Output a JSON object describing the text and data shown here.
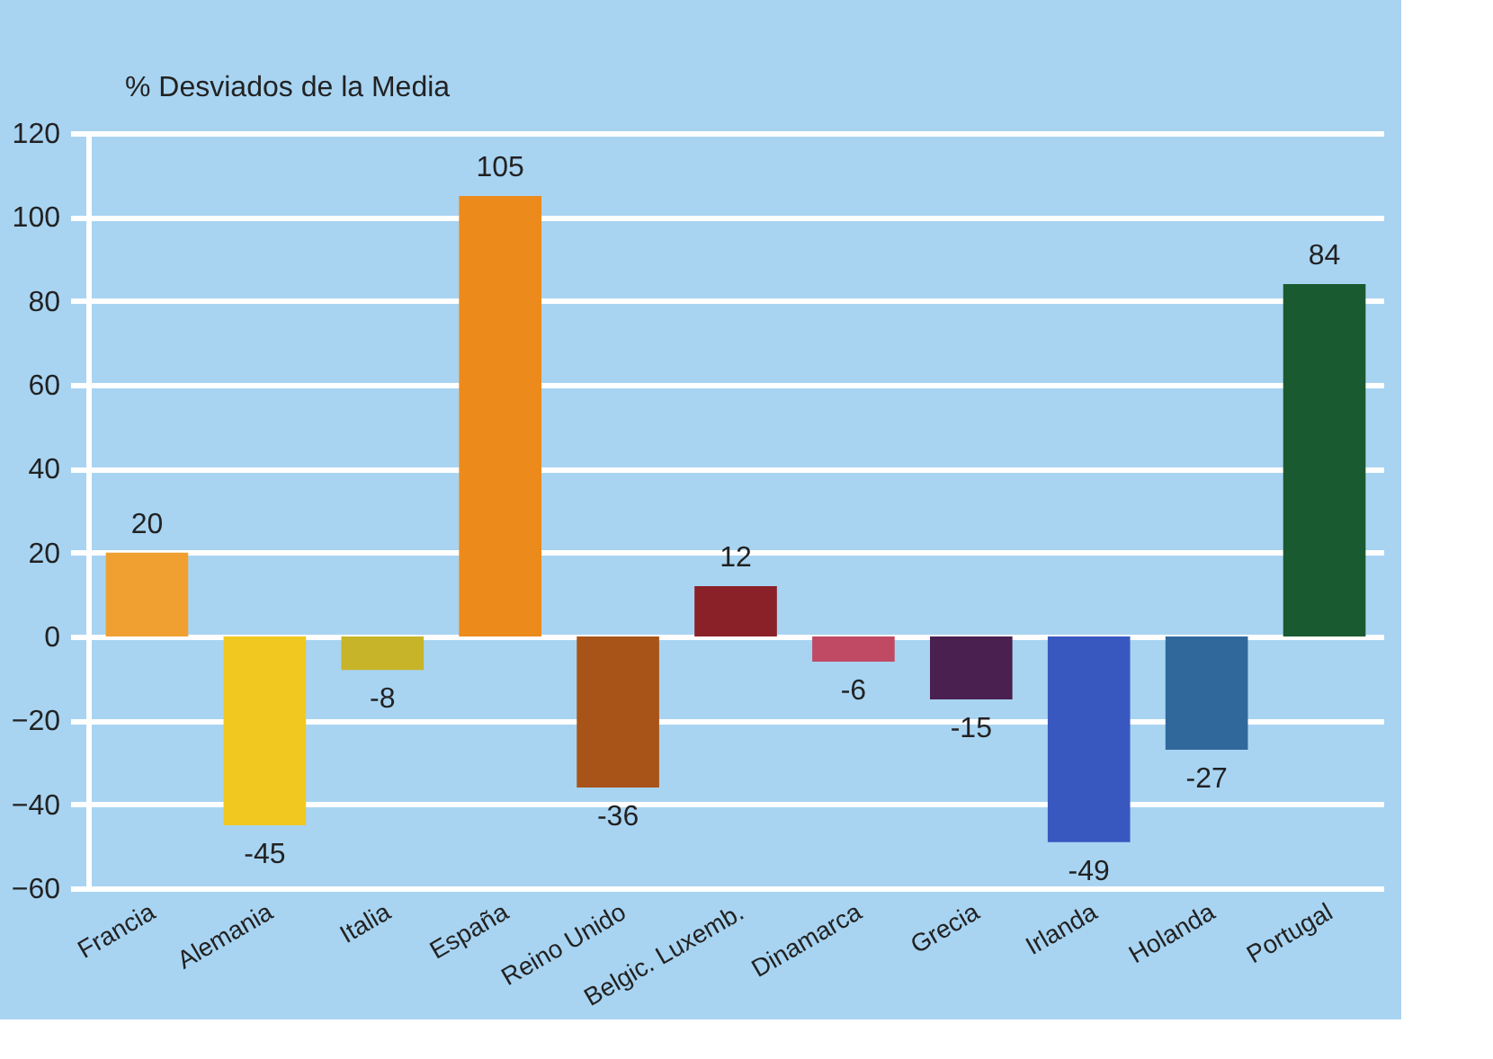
{
  "chart_data": {
    "type": "bar",
    "ylabel": "% Desviados de la Media",
    "categories": [
      "Francia",
      "Alemania",
      "Italia",
      "España",
      "Reino Unido",
      "Belgic. Luxemb.",
      "Dinamarca",
      "Grecia",
      "Irlanda",
      "Holanda",
      "Portugal"
    ],
    "values": [
      20,
      -45,
      -8,
      105,
      -36,
      12,
      -6,
      -15,
      -49,
      -27,
      84
    ],
    "colors": [
      "#f0a030",
      "#f0c820",
      "#c8b428",
      "#ec8a1c",
      "#a85418",
      "#8a2028",
      "#c04a64",
      "#4a2050",
      "#3858c0",
      "#30689c",
      "#1a5a30"
    ],
    "data_labels": true,
    "ylim": [
      -60,
      120
    ],
    "yticks": [
      -60,
      -40,
      -20,
      0,
      20,
      40,
      60,
      80,
      100,
      120
    ],
    "grid": "y"
  }
}
